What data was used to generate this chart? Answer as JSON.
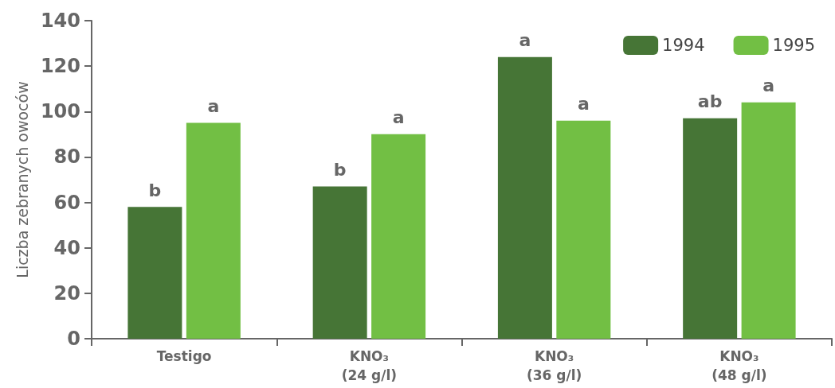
{
  "chart_data": {
    "type": "bar",
    "ylabel": "Liczba zebranych owoców",
    "categories": [
      "Testigo",
      "KNO₃\n(24 g/l)",
      "KNO₃\n(36 g/l)",
      "KNO₃\n(48 g/l)"
    ],
    "series": [
      {
        "name": "1994",
        "color": "#467536",
        "values": [
          58,
          67,
          124,
          97
        ]
      },
      {
        "name": "1995",
        "color": "#72bf44",
        "values": [
          95,
          90,
          96,
          104
        ]
      }
    ],
    "ylim": [
      0,
      140
    ],
    "yticks": [
      0,
      20,
      40,
      60,
      80,
      100,
      120,
      140
    ],
    "grid": false,
    "legend": "top right",
    "annotations": [
      {
        "text": "b",
        "x": "Testigo",
        "y": 58
      },
      {
        "text": "a",
        "x": "Testigo",
        "y": 95
      },
      {
        "text": "b",
        "x": "KNO₃\n(24 g/l)",
        "y": 67
      },
      {
        "text": "a",
        "x": "KNO₃\n(24 g/l)",
        "y": 90
      },
      {
        "text": "a",
        "x": "KNO₃\n(36 g/l)",
        "y": 124
      },
      {
        "text": "a",
        "x": "KNO₃\n(36 g/l)",
        "y": 96
      },
      {
        "text": "ab",
        "x": "KNO₃\n(48 g/l)",
        "y": 97
      },
      {
        "text": "a",
        "x": "KNO₃\n(48 g/l)",
        "y": 104
      }
    ]
  }
}
